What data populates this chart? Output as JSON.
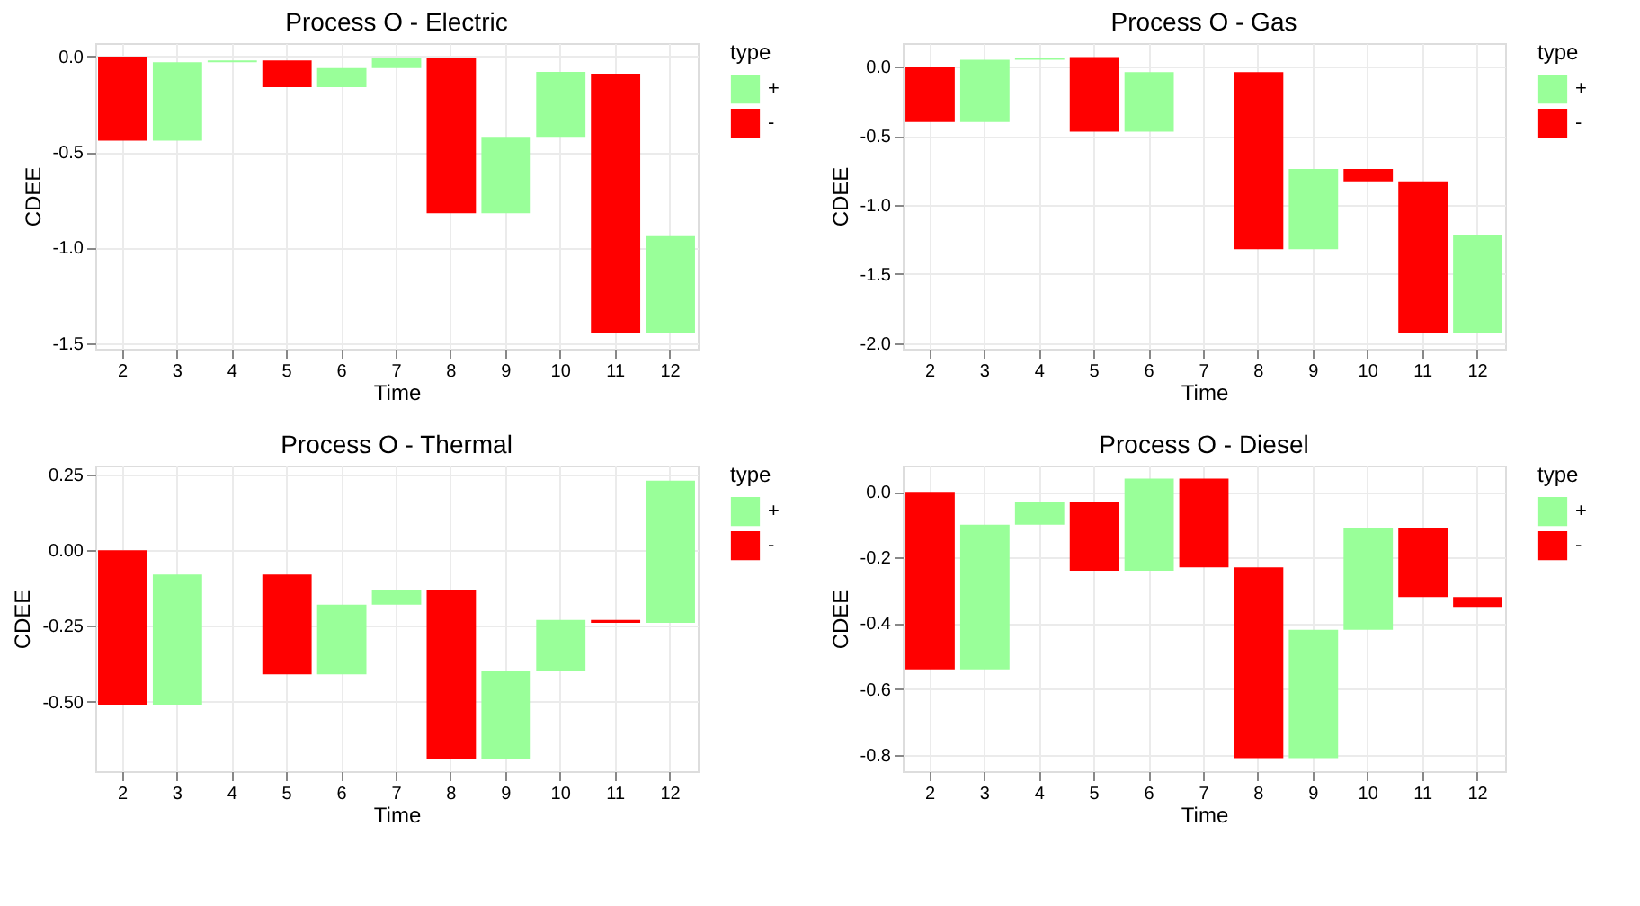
{
  "chart_data": [
    {
      "type": "bar",
      "title": "Process O - Electric",
      "xlabel": "Time",
      "ylabel": "CDEE",
      "legend_title": "type",
      "legend": "right",
      "grid": true,
      "categories": [
        "2",
        "3",
        "4",
        "5",
        "6",
        "7",
        "8",
        "9",
        "10",
        "11",
        "12"
      ],
      "series": [
        {
          "name": "+",
          "color": "#99ff99",
          "base": [
            null,
            -0.44,
            -0.03,
            null,
            -0.16,
            -0.06,
            null,
            -0.82,
            -0.42,
            null,
            -1.45
          ],
          "values": [
            null,
            0.41,
            0.01,
            null,
            0.1,
            0.05,
            null,
            0.4,
            0.34,
            null,
            0.51
          ]
        },
        {
          "name": "-",
          "color": "#ff0000",
          "base": [
            0,
            null,
            null,
            -0.02,
            null,
            null,
            -0.01,
            null,
            null,
            -0.09,
            null
          ],
          "values": [
            -0.44,
            null,
            null,
            -0.14,
            null,
            null,
            -0.81,
            null,
            null,
            -1.36,
            null
          ]
        }
      ],
      "ylim": [
        -1.53,
        0.07
      ],
      "yticks": [
        {
          "value": 0,
          "label": "0.0"
        },
        {
          "value": -0.5,
          "label": "-0.5"
        },
        {
          "value": -1,
          "label": "-1.0"
        },
        {
          "value": -1.5,
          "label": "-1.5"
        }
      ]
    },
    {
      "type": "bar",
      "title": "Process O - Gas",
      "xlabel": "Time",
      "ylabel": "CDEE",
      "legend_title": "type",
      "legend": "right",
      "grid": true,
      "categories": [
        "2",
        "3",
        "4",
        "5",
        "6",
        "7",
        "8",
        "9",
        "10",
        "11",
        "12"
      ],
      "series": [
        {
          "name": "+",
          "color": "#99ff99",
          "base": [
            null,
            -0.4,
            0.05,
            null,
            -0.47,
            null,
            null,
            -1.32,
            null,
            null,
            -1.93
          ],
          "values": [
            null,
            0.45,
            0.01,
            null,
            0.43,
            null,
            null,
            0.58,
            null,
            null,
            0.71
          ]
        },
        {
          "name": "-",
          "color": "#ff0000",
          "base": [
            0,
            null,
            null,
            0.07,
            null,
            null,
            -0.04,
            null,
            -0.74,
            -0.83,
            null
          ],
          "values": [
            -0.4,
            null,
            null,
            -0.54,
            null,
            null,
            -1.28,
            null,
            -0.09,
            -1.1,
            null
          ]
        }
      ],
      "ylim": [
        -2.04,
        0.17
      ],
      "yticks": [
        {
          "value": 0,
          "label": "0.0"
        },
        {
          "value": -0.5,
          "label": "-0.5"
        },
        {
          "value": -1,
          "label": "-1.0"
        },
        {
          "value": -1.5,
          "label": "-1.5"
        },
        {
          "value": -2,
          "label": "-2.0"
        }
      ]
    },
    {
      "type": "bar",
      "title": "Process O - Thermal",
      "xlabel": "Time",
      "ylabel": "CDEE",
      "legend_title": "type",
      "legend": "right",
      "grid": true,
      "categories": [
        "2",
        "3",
        "4",
        "5",
        "6",
        "7",
        "8",
        "9",
        "10",
        "11",
        "12"
      ],
      "series": [
        {
          "name": "+",
          "color": "#99ff99",
          "base": [
            null,
            -0.51,
            null,
            null,
            -0.41,
            -0.18,
            null,
            -0.69,
            -0.4,
            null,
            -0.24
          ],
          "values": [
            null,
            0.43,
            null,
            null,
            0.23,
            0.05,
            null,
            0.29,
            0.17,
            null,
            0.47
          ]
        },
        {
          "name": "-",
          "color": "#ff0000",
          "base": [
            0,
            null,
            null,
            -0.08,
            null,
            null,
            -0.13,
            null,
            null,
            -0.23,
            null
          ],
          "values": [
            -0.51,
            null,
            null,
            -0.33,
            null,
            null,
            -0.56,
            null,
            null,
            -0.01,
            null
          ]
        }
      ],
      "ylim": [
        -0.73,
        0.28
      ],
      "yticks": [
        {
          "value": 0.25,
          "label": "0.25"
        },
        {
          "value": 0,
          "label": "0.00"
        },
        {
          "value": -0.25,
          "label": "-0.25"
        },
        {
          "value": -0.5,
          "label": "-0.50"
        }
      ]
    },
    {
      "type": "bar",
      "title": "Process O - Diesel",
      "xlabel": "Time",
      "ylabel": "CDEE",
      "legend_title": "type",
      "legend": "right",
      "grid": true,
      "categories": [
        "2",
        "3",
        "4",
        "5",
        "6",
        "7",
        "8",
        "9",
        "10",
        "11",
        "12"
      ],
      "series": [
        {
          "name": "+",
          "color": "#99ff99",
          "base": [
            null,
            -0.54,
            -0.1,
            null,
            -0.24,
            null,
            null,
            -0.81,
            -0.42,
            null,
            null
          ],
          "values": [
            null,
            0.44,
            0.07,
            null,
            0.28,
            null,
            null,
            0.39,
            0.31,
            null,
            null
          ]
        },
        {
          "name": "-",
          "color": "#ff0000",
          "base": [
            0,
            null,
            null,
            -0.03,
            null,
            0.04,
            -0.23,
            null,
            null,
            -0.11,
            -0.32
          ],
          "values": [
            -0.54,
            null,
            null,
            -0.21,
            null,
            -0.27,
            -0.58,
            null,
            null,
            -0.21,
            -0.03
          ]
        }
      ],
      "ylim": [
        -0.85,
        0.08
      ],
      "yticks": [
        {
          "value": 0,
          "label": "0.0"
        },
        {
          "value": -0.2,
          "label": "-0.2"
        },
        {
          "value": -0.4,
          "label": "-0.4"
        },
        {
          "value": -0.6,
          "label": "-0.6"
        },
        {
          "value": -0.8,
          "label": "-0.8"
        }
      ]
    }
  ]
}
